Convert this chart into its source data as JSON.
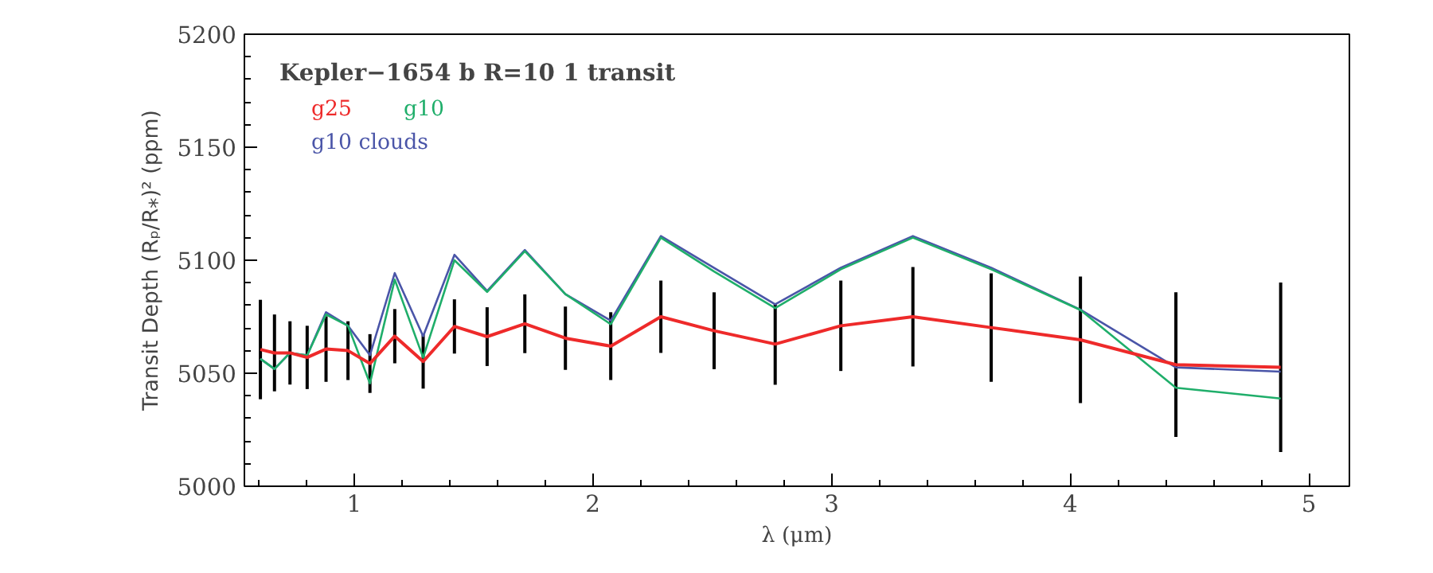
{
  "chart_data": {
    "type": "line",
    "title": "Kepler−1654 b R=10 1 transit",
    "xlabel": "λ (μm)",
    "ylabel": "Transit Depth (Rₚ/R⁎)² (ppm)",
    "x": [
      0.607,
      0.666,
      0.731,
      0.803,
      0.882,
      0.974,
      1.066,
      1.17,
      1.289,
      1.42,
      1.557,
      1.715,
      1.885,
      2.075,
      2.285,
      2.508,
      2.764,
      3.039,
      3.341,
      3.669,
      4.043,
      4.443,
      4.882
    ],
    "series": [
      {
        "name": "g10 clouds",
        "color": "#4a55a8",
        "values": [
          5056.4,
          5051.9,
          5059,
          5057.9,
          5077,
          5071,
          5058,
          5094.3,
          5066.4,
          5102.4,
          5086.4,
          5104.5,
          5085,
          5073.3,
          5110.7,
          5096.6,
          5080.5,
          5096.7,
          5110.7,
          5096.7,
          5078.1,
          5052.6,
          5050.7
        ]
      },
      {
        "name": "g10",
        "color": "#1fae6a",
        "values": [
          5056.4,
          5051.9,
          5059,
          5057.9,
          5076,
          5071,
          5045.5,
          5091.4,
          5056.9,
          5100,
          5086,
          5104,
          5085,
          5071.7,
          5110,
          5095,
          5078.8,
          5096,
          5110,
          5096,
          5078,
          5043.6,
          5038.8
        ]
      },
      {
        "name": "g25",
        "color": "#ee2a2a",
        "values": [
          5060.5,
          5059,
          5059,
          5057,
          5060.7,
          5060,
          5054.3,
          5066.4,
          5055.2,
          5070.7,
          5066.2,
          5071.9,
          5065.5,
          5062,
          5075,
          5068.8,
          5062.9,
          5071,
          5075,
          5070.2,
          5064.8,
          5053.8,
          5052.6
        ],
        "errors": [
          22,
          17,
          14,
          14,
          14.5,
          13,
          13,
          12,
          12,
          12,
          13,
          13,
          14,
          15,
          16,
          17,
          18,
          20,
          22,
          24,
          28,
          32,
          37.5
        ]
      }
    ],
    "xlim": [
      0.54,
      5.17
    ],
    "xticks": [
      1,
      2,
      3,
      4,
      5
    ],
    "ylim": [
      5000,
      5200
    ],
    "yticks": [
      5000,
      5050,
      5100,
      5150,
      5200
    ],
    "legend": "top left",
    "grid": false
  }
}
